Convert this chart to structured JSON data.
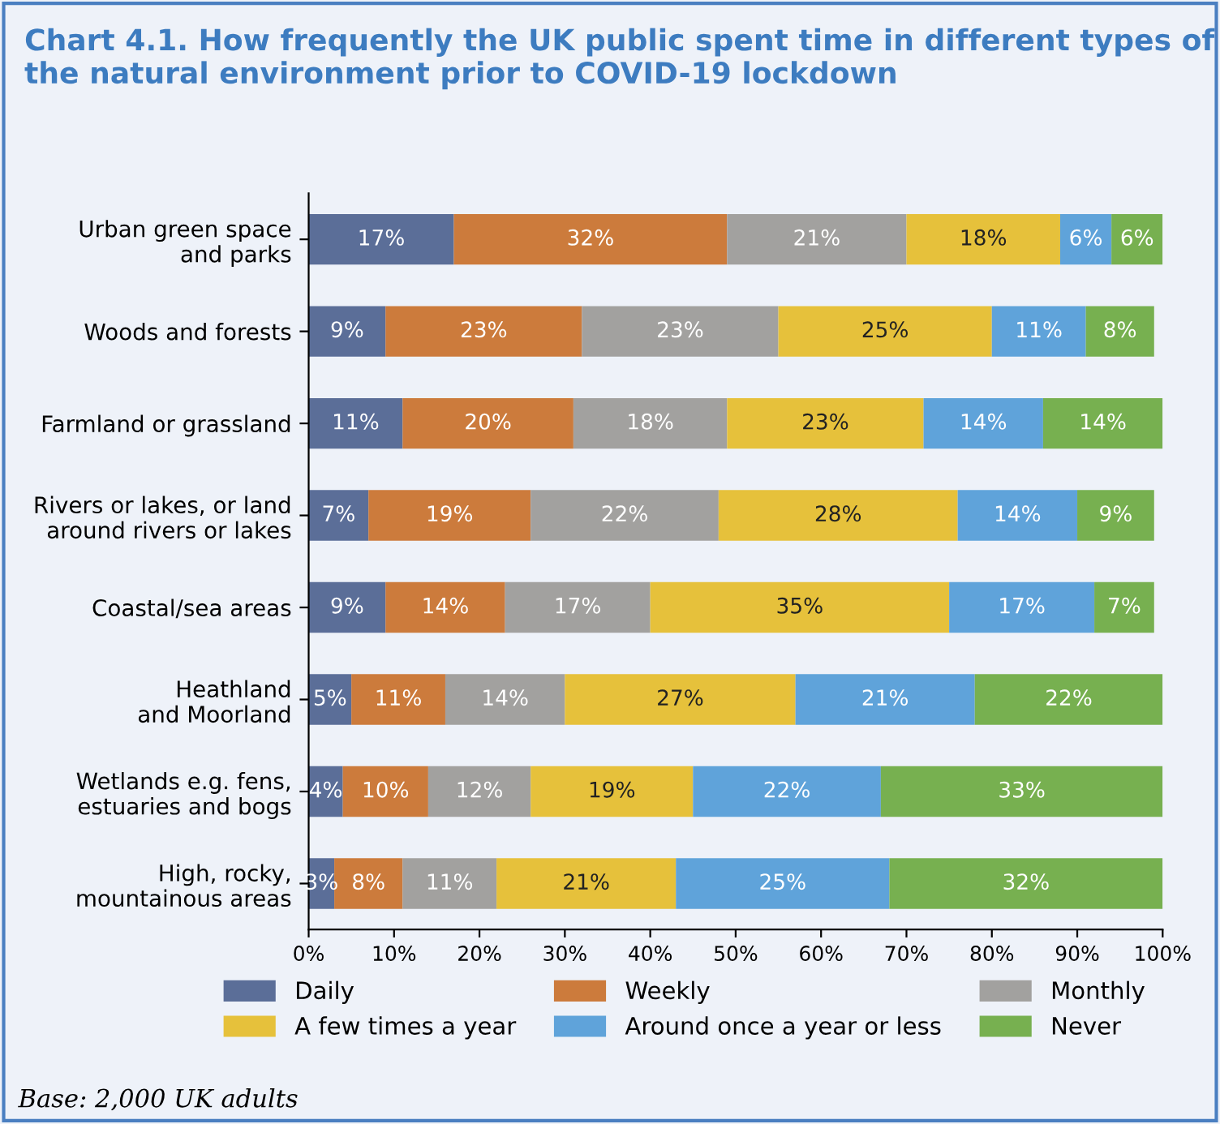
{
  "chart_data": {
    "type": "bar",
    "orientation": "horizontal",
    "stacked": true,
    "title": "Chart 4.1. How frequently the UK public spent time in different types of the natural environment prior to COVID-19 lockdown",
    "categories": [
      "Urban green space\nand parks",
      "Woods and forests",
      "Farmland or grassland",
      "Rivers or lakes, or land\naround rivers or lakes",
      "Coastal/sea areas",
      "Heathland\nand Moorland",
      "Wetlands e.g. fens,\nestuaries and bogs",
      "High, rocky,\nmountainous areas"
    ],
    "series": [
      {
        "name": "Daily",
        "color": "#5b6e98",
        "values": [
          17,
          9,
          11,
          7,
          9,
          5,
          4,
          3
        ],
        "value_labels": [
          "17%",
          "9%",
          "11%",
          "7%",
          "9%",
          "5%",
          "4%",
          "3%"
        ]
      },
      {
        "name": "Weekly",
        "color": "#cc7b3c",
        "values": [
          32,
          23,
          20,
          19,
          14,
          11,
          10,
          8
        ],
        "value_labels": [
          "32%",
          "23%",
          "20%",
          "19%",
          "14%",
          "11%",
          "10%",
          "8%"
        ]
      },
      {
        "name": "Monthly",
        "color": "#a2a19f",
        "values": [
          21,
          23,
          18,
          22,
          17,
          14,
          12,
          11
        ],
        "value_labels": [
          "21%",
          "23%",
          "18%",
          "22%",
          "17%",
          "14%",
          "12%",
          "11%"
        ]
      },
      {
        "name": "A few times a year",
        "color": "#e6c13b",
        "values": [
          18,
          25,
          23,
          28,
          35,
          27,
          19,
          21
        ],
        "value_labels": [
          "18%",
          "25%",
          "23%",
          "28%",
          "35%",
          "27%",
          "19%",
          "21%"
        ]
      },
      {
        "name": "Around once a year or less",
        "color": "#5fa3da",
        "values": [
          6,
          11,
          14,
          14,
          17,
          21,
          22,
          25
        ],
        "value_labels": [
          "6%",
          "11%",
          "14%",
          "14%",
          "17%",
          "21%",
          "22%",
          "25%"
        ]
      },
      {
        "name": "Never",
        "color": "#77b050",
        "values": [
          6,
          8,
          14,
          9,
          7,
          22,
          33,
          32
        ],
        "value_labels": [
          "6%",
          "8%",
          "14%",
          "9%",
          "7%",
          "22%",
          "33%",
          "32%"
        ]
      }
    ],
    "xlim": [
      0,
      100
    ],
    "xticks": [
      {
        "value": 0,
        "label": "0%"
      },
      {
        "value": 10,
        "label": "10%"
      },
      {
        "value": 20,
        "label": "20%"
      },
      {
        "value": 30,
        "label": "30%"
      },
      {
        "value": 40,
        "label": "40%"
      },
      {
        "value": 50,
        "label": "50%"
      },
      {
        "value": 60,
        "label": "60%"
      },
      {
        "value": 70,
        "label": "70%"
      },
      {
        "value": 80,
        "label": "80%"
      },
      {
        "value": 90,
        "label": "90%"
      },
      {
        "value": 100,
        "label": "100%"
      }
    ],
    "legend": "bottom",
    "grid": false,
    "annotations": [
      "Base: 2,000 UK adults"
    ]
  }
}
